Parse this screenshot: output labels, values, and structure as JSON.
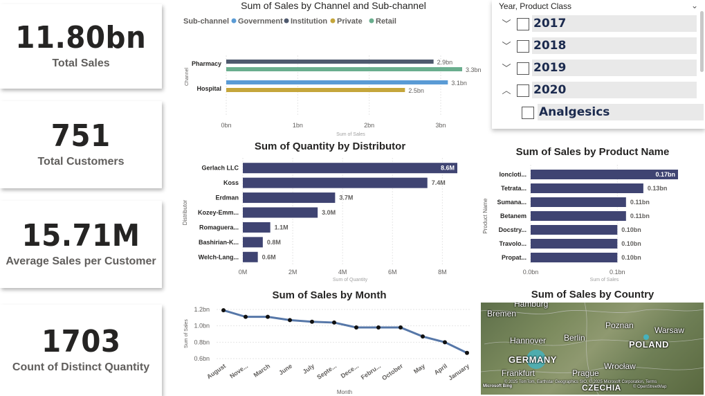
{
  "kpis": [
    {
      "value": "11.80bn",
      "label": "Total Sales"
    },
    {
      "value": "751",
      "label": "Total Customers"
    },
    {
      "value": "15.71M",
      "label": "Average Sales per Customer"
    },
    {
      "value": "1703",
      "label": "Count of Distinct Quantity"
    }
  ],
  "slicer": {
    "header": "Year, Product Class",
    "items": [
      {
        "label": "2017",
        "expand": "﹀"
      },
      {
        "label": "2018",
        "expand": "﹀"
      },
      {
        "label": "2019",
        "expand": "﹀"
      },
      {
        "label": "2020",
        "expand": "︿"
      },
      {
        "label": "Analgesics",
        "expand": ""
      }
    ]
  },
  "map": {
    "title": "Sum of Sales by Country",
    "labels": [
      "Hamburg",
      "Bremen",
      "Hannover",
      "Berlin",
      "Poznan",
      "Warsaw",
      "POLAND",
      "GERMANY",
      "Frankfurt",
      "Wrocław",
      "Prague",
      "CZECHIA"
    ],
    "attribution": "© 2025 TomTom, Earthstar Geographics SIO, © 2025 Microsoft Corporation, Terms",
    "attribution2": "© OpenStreetMap",
    "provider": "Microsoft Bing"
  },
  "colors": {
    "bar": "#3f4472",
    "government": "#5a9bd5",
    "institution": "#4f5a6e",
    "private": "#c5a63b",
    "retail": "#6aae8e",
    "line": "#5677a8"
  },
  "chart_data": [
    {
      "type": "bar",
      "title": "Sum of Sales by Channel and Sub-channel",
      "legend_title": "Sub-channel",
      "legend_position": "top-left",
      "orientation": "horizontal",
      "categories": [
        "Pharmacy",
        "Hospital"
      ],
      "series": [
        {
          "name": "Government",
          "values": [
            null,
            3.1
          ],
          "labels": [
            "",
            "3.1bn"
          ]
        },
        {
          "name": "Institution",
          "values": [
            2.9,
            null
          ],
          "labels": [
            "2.9bn",
            ""
          ]
        },
        {
          "name": "Private",
          "values": [
            null,
            2.5
          ],
          "labels": [
            "",
            "2.5bn"
          ]
        },
        {
          "name": "Retail",
          "values": [
            3.3,
            null
          ],
          "labels": [
            "3.3bn",
            ""
          ]
        }
      ],
      "xticks": [
        "0bn",
        "1bn",
        "2bn",
        "3bn"
      ],
      "xlim": [
        0,
        3.3
      ],
      "xlabel": "Sum of Sales",
      "ylabel": "Channel",
      "grid": true
    },
    {
      "type": "bar",
      "title": "Sum of Quantity by Distributor",
      "orientation": "horizontal",
      "categories": [
        "Gerlach LLC",
        "Koss",
        "Erdman",
        "Kozey-Emm...",
        "Romaguera...",
        "Bashirian-K...",
        "Welch-Lang..."
      ],
      "values": [
        8.6,
        7.4,
        3.7,
        3.0,
        1.1,
        0.8,
        0.6
      ],
      "labels": [
        "8.6M",
        "7.4M",
        "3.7M",
        "3.0M",
        "1.1M",
        "0.8M",
        "0.6M"
      ],
      "xticks": [
        "0M",
        "2M",
        "4M",
        "6M",
        "8M"
      ],
      "xlim": [
        0,
        8.6
      ],
      "xlabel": "Sum of Quantity",
      "ylabel": "Distributor",
      "grid": true
    },
    {
      "type": "bar",
      "title": "Sum of Sales by Product Name",
      "orientation": "horizontal",
      "categories": [
        "Ioncloti...",
        "Tetrata...",
        "Sumana...",
        "Betanem",
        "Docstry...",
        "Travolo...",
        "Propat..."
      ],
      "values": [
        0.17,
        0.13,
        0.11,
        0.11,
        0.1,
        0.1,
        0.1
      ],
      "labels": [
        "0.17bn",
        "0.13bn",
        "0.11bn",
        "0.11bn",
        "0.10bn",
        "0.10bn",
        "0.10bn"
      ],
      "xticks": [
        "0.0bn",
        "0.1bn"
      ],
      "xlim": [
        0,
        0.17
      ],
      "xlabel": "Sum of Sales",
      "ylabel": "Product Name",
      "grid": true
    },
    {
      "type": "line",
      "title": "Sum of Sales by Month",
      "x": [
        "August",
        "Nove...",
        "March",
        "June",
        "July",
        "Septe...",
        "Dece...",
        "Febru...",
        "October",
        "May",
        "April",
        "January"
      ],
      "y": [
        1.19,
        1.11,
        1.11,
        1.07,
        1.05,
        1.04,
        0.98,
        0.98,
        0.98,
        0.87,
        0.8,
        0.67
      ],
      "yticks": [
        "0.6bn",
        "0.8bn",
        "1.0bn",
        "1.2bn"
      ],
      "ylim": [
        0.6,
        1.2
      ],
      "xlabel": "Month",
      "ylabel": "Sum of Sales",
      "grid": true
    }
  ]
}
